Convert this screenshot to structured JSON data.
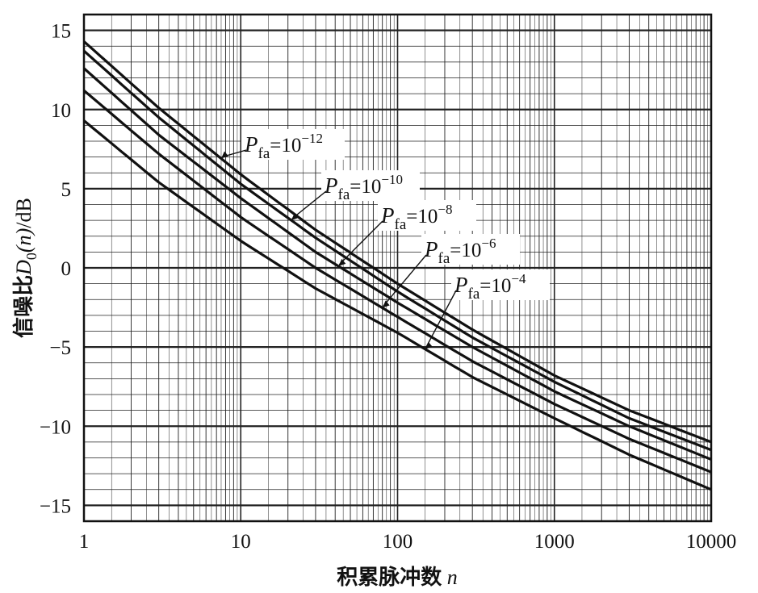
{
  "chart_data": {
    "type": "line",
    "xscale": "log",
    "xlim": [
      1,
      10000
    ],
    "ylim": [
      -16,
      16
    ],
    "grid": true,
    "xlabel": {
      "zh": "积累脉冲数",
      "var": "n"
    },
    "ylabel": {
      "zh": "信噪比",
      "D": "D",
      "sub": "0",
      "arg": "(n)",
      "unit": "/dB"
    },
    "xticks": [
      {
        "value": 1,
        "label": "1"
      },
      {
        "value": 10,
        "label": "10"
      },
      {
        "value": 100,
        "label": "100"
      },
      {
        "value": 1000,
        "label": "1000"
      },
      {
        "value": 10000,
        "label": "10000"
      }
    ],
    "yticks": [
      {
        "value": 15,
        "label": "15"
      },
      {
        "value": 10,
        "label": "10"
      },
      {
        "value": 5,
        "label": "5"
      },
      {
        "value": 0,
        "label": "0"
      },
      {
        "value": -5,
        "label": "−5"
      },
      {
        "value": -10,
        "label": "−10"
      },
      {
        "value": -15,
        "label": "−15"
      }
    ],
    "series": [
      {
        "name": "P_fa=10^-12",
        "P": "P",
        "sub": "fa",
        "base": "=10",
        "exp": "−12",
        "x": [
          1,
          3,
          10,
          30,
          100,
          300,
          1000,
          3000,
          10000
        ],
        "y": [
          14.3,
          10.1,
          5.9,
          2.4,
          -1.0,
          -3.9,
          -6.8,
          -9.0,
          -11.0
        ]
      },
      {
        "name": "P_fa=10^-10",
        "P": "P",
        "sub": "fa",
        "base": "=10",
        "exp": "−10",
        "x": [
          1,
          3,
          10,
          30,
          100,
          300,
          1000,
          3000,
          10000
        ],
        "y": [
          13.7,
          9.5,
          5.3,
          1.9,
          -1.5,
          -4.4,
          -7.2,
          -9.5,
          -11.5
        ]
      },
      {
        "name": "P_fa=10^-8",
        "P": "P",
        "sub": "fa",
        "base": "=10",
        "exp": "−8",
        "x": [
          1,
          3,
          10,
          30,
          100,
          300,
          1000,
          3000,
          10000
        ],
        "y": [
          12.6,
          8.4,
          4.4,
          1.0,
          -2.2,
          -5.0,
          -7.8,
          -10.0,
          -12.1
        ]
      },
      {
        "name": "P_fa=10^-6",
        "P": "P",
        "sub": "fa",
        "base": "=10",
        "exp": "−6",
        "x": [
          1,
          3,
          10,
          30,
          100,
          300,
          1000,
          3000,
          10000
        ],
        "y": [
          11.2,
          7.2,
          3.2,
          0.0,
          -3.1,
          -5.9,
          -8.6,
          -10.8,
          -12.9
        ]
      },
      {
        "name": "P_fa=10^-4",
        "P": "P",
        "sub": "fa",
        "base": "=10",
        "exp": "−4",
        "x": [
          1,
          3,
          10,
          30,
          100,
          300,
          1000,
          3000,
          10000
        ],
        "y": [
          9.3,
          5.4,
          1.7,
          -1.3,
          -4.1,
          -6.9,
          -9.5,
          -11.8,
          -14.0
        ]
      }
    ]
  }
}
